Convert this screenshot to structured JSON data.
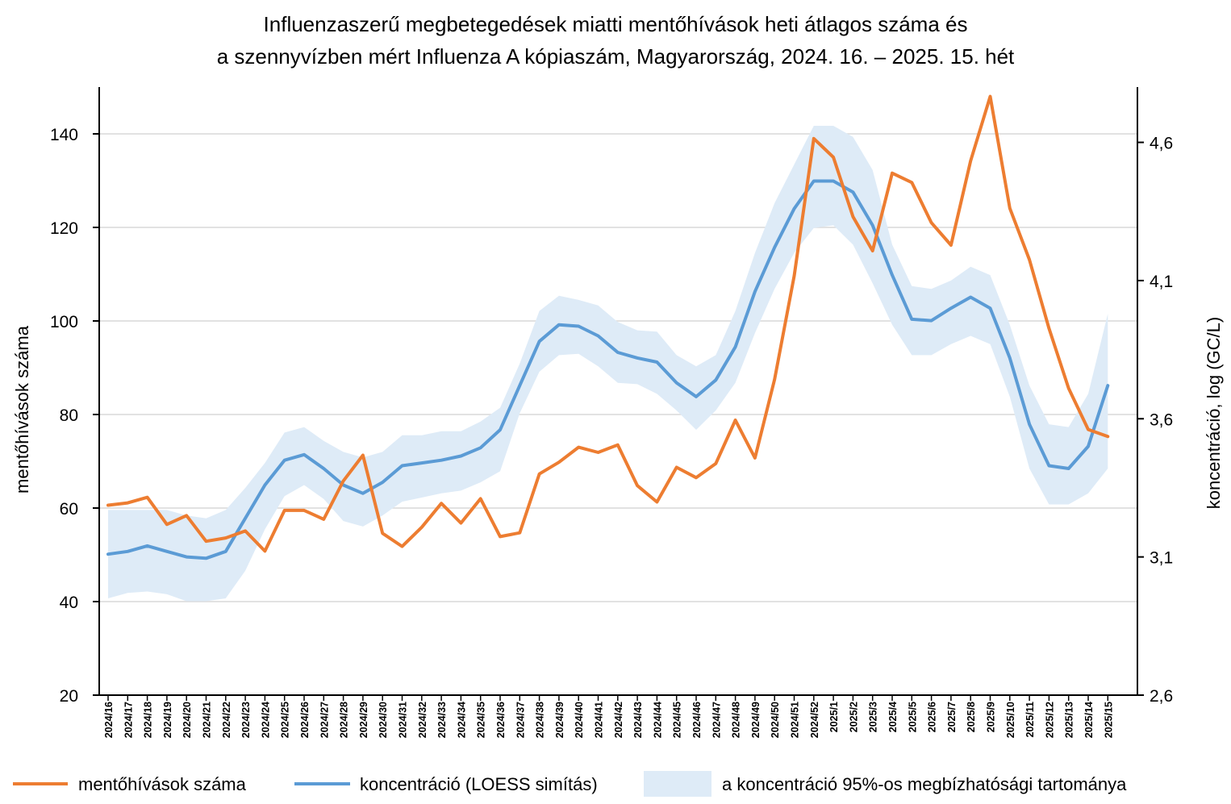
{
  "chart_data": {
    "type": "line",
    "title": [
      "Influenzaszerű megbetegedések miatti mentőhívások heti átlagos száma és",
      "a szennyvízben mért Influenza A kópiaszám, Magyarország, 2024. 16. – 2025. 15. hét"
    ],
    "ylabel_left": "mentőhívások száma",
    "ylabel_right": "koncentráció, log (GC/L)",
    "ylim_left": [
      20,
      150
    ],
    "ylim_right": [
      2.6,
      4.8
    ],
    "yticks_left": [
      20,
      40,
      60,
      80,
      100,
      120,
      140
    ],
    "yticks_right": [
      "2,6",
      "3,1",
      "3,6",
      "4,1",
      "4,6"
    ],
    "ytick_values_right": [
      2.6,
      3.1,
      3.6,
      4.1,
      4.6
    ],
    "grid": true,
    "legend_position": "bottom",
    "categories": [
      "2024/16",
      "2024/17",
      "2024/18",
      "2024/19",
      "2024/20",
      "2024/21",
      "2024/22",
      "2024/23",
      "2024/24",
      "2024/25",
      "2024/26",
      "2024/27",
      "2024/28",
      "2024/29",
      "2024/30",
      "2024/31",
      "2024/32",
      "2024/33",
      "2024/34",
      "2024/35",
      "2024/36",
      "2024/37",
      "2024/38",
      "2024/39",
      "2024/40",
      "2024/41",
      "2024/42",
      "2024/43",
      "2024/44",
      "2024/45",
      "2024/46",
      "2024/47",
      "2024/48",
      "2024/49",
      "2024/50",
      "2024/51",
      "2024/52",
      "2025/1",
      "2025/2",
      "2025/3",
      "2025/4",
      "2025/5",
      "2025/6",
      "2025/7",
      "2025/8",
      "2025/9",
      "2025/10",
      "2025/11",
      "2025/12",
      "2025/13",
      "2025/14",
      "2025/15"
    ],
    "series": [
      {
        "name": "mentőhívások száma",
        "axis": "left",
        "color": "#ED7D31",
        "values": [
          60.6,
          61.1,
          62.3,
          56.5,
          58.4,
          52.9,
          53.6,
          55.1,
          50.8,
          59.5,
          59.5,
          57.6,
          65.8,
          71.3,
          54.6,
          51.8,
          55.9,
          61.0,
          56.8,
          62.0,
          53.9,
          54.7,
          67.3,
          69.8,
          73.0,
          71.9,
          73.5,
          64.8,
          61.3,
          68.7,
          66.5,
          69.5,
          78.8,
          70.7,
          87.5,
          109.6,
          139.0,
          135.0,
          122.3,
          115.0,
          131.6,
          129.6,
          121.0,
          116.2,
          134.2,
          148.0,
          124.1,
          113.1,
          98.4,
          85.6,
          76.8,
          75.3
        ]
      },
      {
        "name": "koncentráció (LOESS simítás)",
        "axis": "right",
        "color": "#5B9BD5",
        "values": [
          3.11,
          3.12,
          3.14,
          3.12,
          3.1,
          3.095,
          3.12,
          3.24,
          3.36,
          3.45,
          3.47,
          3.42,
          3.36,
          3.33,
          3.37,
          3.43,
          3.44,
          3.45,
          3.465,
          3.495,
          3.56,
          3.72,
          3.88,
          3.94,
          3.935,
          3.9,
          3.84,
          3.82,
          3.805,
          3.73,
          3.68,
          3.74,
          3.86,
          4.06,
          4.22,
          4.36,
          4.46,
          4.46,
          4.42,
          4.3,
          4.12,
          3.96,
          3.955,
          4.0,
          4.04,
          4.0,
          3.82,
          3.58,
          3.43,
          3.42,
          3.5,
          3.72
        ]
      }
    ],
    "band": {
      "name": "a koncentráció 95%-os megbízhatósági tartománya",
      "axis": "right",
      "color": "#DEEBF7",
      "upper": [
        3.27,
        3.27,
        3.27,
        3.27,
        3.25,
        3.24,
        3.27,
        3.35,
        3.44,
        3.55,
        3.57,
        3.52,
        3.48,
        3.46,
        3.48,
        3.54,
        3.54,
        3.555,
        3.555,
        3.59,
        3.64,
        3.8,
        3.99,
        4.045,
        4.03,
        4.01,
        3.95,
        3.92,
        3.915,
        3.83,
        3.79,
        3.83,
        3.99,
        4.2,
        4.38,
        4.52,
        4.66,
        4.66,
        4.62,
        4.5,
        4.23,
        4.08,
        4.07,
        4.1,
        4.15,
        4.12,
        3.94,
        3.72,
        3.58,
        3.57,
        3.69,
        3.98
      ],
      "lower": [
        2.95,
        2.97,
        2.975,
        2.965,
        2.94,
        2.94,
        2.95,
        3.05,
        3.2,
        3.32,
        3.36,
        3.31,
        3.23,
        3.21,
        3.25,
        3.3,
        3.315,
        3.33,
        3.34,
        3.37,
        3.41,
        3.62,
        3.77,
        3.83,
        3.835,
        3.79,
        3.73,
        3.725,
        3.69,
        3.63,
        3.56,
        3.63,
        3.73,
        3.91,
        4.07,
        4.2,
        4.29,
        4.3,
        4.23,
        4.09,
        3.94,
        3.83,
        3.83,
        3.87,
        3.9,
        3.87,
        3.68,
        3.42,
        3.29,
        3.29,
        3.33,
        3.42
      ]
    }
  }
}
